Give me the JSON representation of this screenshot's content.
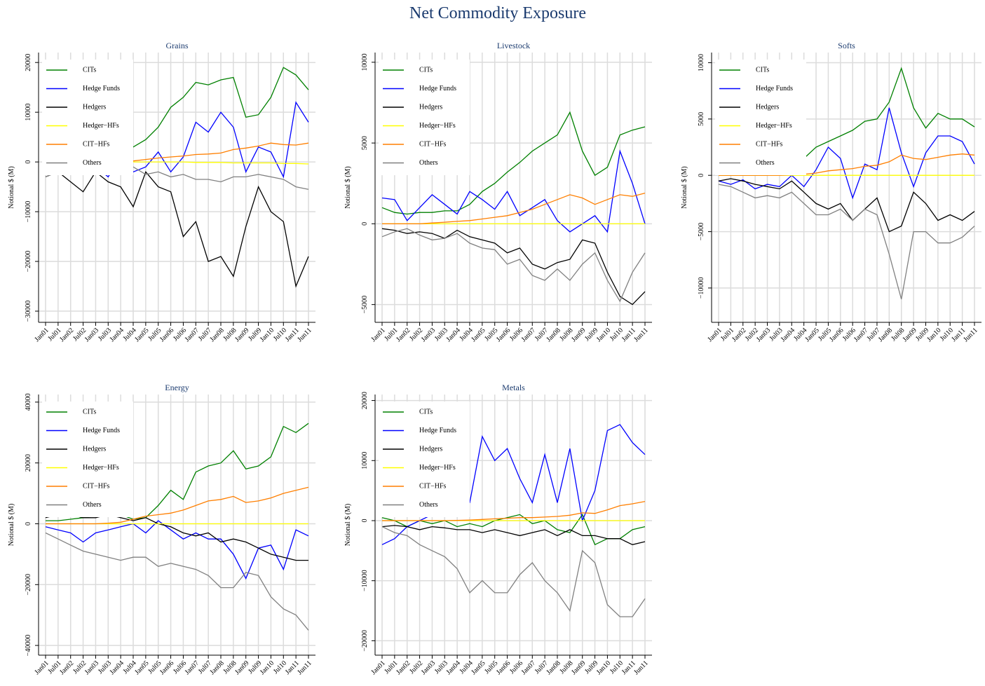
{
  "title": "Net Commodity Exposure",
  "chart_data": [
    {
      "type": "line",
      "title": "Grains",
      "ylabel": "Notional $ (M)",
      "grid": true,
      "legend": "upper left",
      "categories": [
        "Jan01",
        "Jul01",
        "Jan02",
        "Jul02",
        "Jan03",
        "Jul03",
        "Jan04",
        "Jul04",
        "Jan05",
        "Jul05",
        "Jan06",
        "Jul06",
        "Jan07",
        "Jul07",
        "Jan08",
        "Jul08",
        "Jan09",
        "Jul09",
        "Jan10",
        "Jul10",
        "Jan11",
        "Jun11"
      ],
      "ylim": [
        -32250,
        22000
      ],
      "yticks": [
        {
          "value": -30000,
          "label": "−30000"
        },
        {
          "value": -20000,
          "label": "−20000"
        },
        {
          "value": -10000,
          "label": "−10000"
        },
        0,
        10000,
        20000
      ],
      "series": [
        {
          "name": "CITs",
          "color": "#008000",
          "values": [
            0,
            0,
            500,
            800,
            1000,
            1500,
            2000,
            3000,
            4500,
            7000,
            11000,
            13000,
            16000,
            15500,
            16500,
            17000,
            9000,
            9500,
            13000,
            19000,
            17500,
            14500
          ]
        },
        {
          "name": "Hedge Funds",
          "color": "#0000ff",
          "values": [
            -1000,
            -2000,
            -1500,
            -2000,
            -1000,
            -3000,
            1000,
            -2000,
            -1000,
            2000,
            -2000,
            1000,
            8000,
            6000,
            10000,
            7000,
            -2000,
            3000,
            2000,
            -3000,
            12000,
            8000
          ]
        },
        {
          "name": "Hedgers",
          "color": "#000000",
          "values": [
            -3000,
            -2000,
            -4000,
            -6000,
            -2000,
            -4000,
            -5000,
            -9000,
            -2000,
            -5000,
            -6000,
            -15000,
            -12000,
            -20000,
            -19000,
            -23000,
            -13000,
            -5000,
            -10000,
            -12000,
            -25000,
            -19000
          ]
        },
        {
          "name": "Hedger−HFs",
          "color": "#ffff00",
          "values": [
            0,
            0,
            0,
            0,
            0,
            0,
            0,
            0,
            0,
            0,
            0,
            0,
            -100,
            -100,
            -100,
            -200,
            -200,
            -200,
            -200,
            -300,
            -300,
            -400
          ]
        },
        {
          "name": "CIT−HFs",
          "color": "#ff7f00",
          "values": [
            0,
            0,
            0,
            0,
            0,
            0,
            0,
            200,
            500,
            800,
            1000,
            1200,
            1500,
            1600,
            1800,
            2500,
            2800,
            3200,
            3800,
            3500,
            3400,
            3800
          ]
        },
        {
          "name": "Others",
          "color": "#808080",
          "values": [
            -3000,
            -2000,
            -1500,
            -2000,
            -1000,
            -2000,
            0,
            -1000,
            -2500,
            -2000,
            -3000,
            -2500,
            -3500,
            -3500,
            -4000,
            -3000,
            -3000,
            -2500,
            -3000,
            -3500,
            -5000,
            -5500
          ]
        }
      ]
    },
    {
      "type": "line",
      "title": "Livestock",
      "ylabel": "Notional $ (M)",
      "grid": true,
      "legend": "upper left",
      "categories": [
        "Jan01",
        "Jul01",
        "Jan02",
        "Jul02",
        "Jan03",
        "Jul03",
        "Jan04",
        "Jul04",
        "Jan05",
        "Jul05",
        "Jan06",
        "Jul06",
        "Jan07",
        "Jul07",
        "Jan08",
        "Jul08",
        "Jan09",
        "Jul09",
        "Jan10",
        "Jul10",
        "Jan11",
        "Jun11"
      ],
      "ylim": [
        -6100,
        10600
      ],
      "yticks": [
        {
          "value": -5000,
          "label": "−5000"
        },
        0,
        5000,
        10000
      ],
      "series": [
        {
          "name": "CITs",
          "color": "#008000",
          "values": [
            1000,
            700,
            600,
            700,
            700,
            800,
            800,
            1200,
            2000,
            2500,
            3200,
            3800,
            4500,
            5000,
            5500,
            6900,
            4500,
            3000,
            3500,
            5500,
            5800,
            6000
          ]
        },
        {
          "name": "Hedge Funds",
          "color": "#0000ff",
          "values": [
            1600,
            1500,
            200,
            1000,
            1800,
            1200,
            600,
            2000,
            1500,
            900,
            2000,
            500,
            1000,
            1500,
            200,
            -500,
            0,
            500,
            -500,
            4500,
            2500,
            0
          ]
        },
        {
          "name": "Hedgers",
          "color": "#000000",
          "values": [
            -300,
            -400,
            -600,
            -500,
            -600,
            -900,
            -400,
            -800,
            -1000,
            -1200,
            -1800,
            -1500,
            -2500,
            -2800,
            -2400,
            -2200,
            -1000,
            -1200,
            -3000,
            -4500,
            -5000,
            -4200
          ]
        },
        {
          "name": "Hedger−HFs",
          "color": "#ffff00",
          "values": [
            0,
            0,
            0,
            0,
            0,
            0,
            0,
            0,
            0,
            0,
            0,
            0,
            0,
            0,
            0,
            0,
            0,
            0,
            0,
            0,
            0,
            0
          ]
        },
        {
          "name": "CIT−HFs",
          "color": "#ff7f00",
          "values": [
            0,
            0,
            0,
            0,
            50,
            100,
            150,
            200,
            300,
            400,
            500,
            700,
            900,
            1200,
            1500,
            1800,
            1600,
            1200,
            1500,
            1800,
            1700,
            1900
          ]
        },
        {
          "name": "Others",
          "color": "#808080",
          "values": [
            -800,
            -500,
            -300,
            -700,
            -1000,
            -900,
            -600,
            -1200,
            -1500,
            -1600,
            -2500,
            -2200,
            -3200,
            -3500,
            -2800,
            -3500,
            -2500,
            -1800,
            -3500,
            -4800,
            -3000,
            -1800
          ]
        }
      ]
    },
    {
      "type": "line",
      "title": "Softs",
      "ylabel": "Notional $ (M)",
      "grid": true,
      "legend": "upper left",
      "categories": [
        "Jan01",
        "Jul01",
        "Jan02",
        "Jul02",
        "Jan03",
        "Jul03",
        "Jan04",
        "Jul04",
        "Jan05",
        "Jul05",
        "Jan06",
        "Jul06",
        "Jan07",
        "Jul07",
        "Jan08",
        "Jul08",
        "Jan09",
        "Jul09",
        "Jan10",
        "Jul10",
        "Jan11",
        "Jun11"
      ],
      "ylim": [
        -13050,
        10900
      ],
      "yticks": [
        {
          "value": -10000,
          "label": "−10000"
        },
        {
          "value": -5000,
          "label": "−5000"
        },
        0,
        5000,
        10000
      ],
      "series": [
        {
          "name": "CITs",
          "color": "#008000",
          "values": [
            0,
            0,
            0,
            0,
            0,
            200,
            600,
            1500,
            2500,
            3000,
            3500,
            4000,
            4800,
            5000,
            6500,
            9500,
            6000,
            4200,
            5500,
            5000,
            5000,
            4300
          ]
        },
        {
          "name": "Hedge Funds",
          "color": "#0000ff",
          "values": [
            -500,
            -800,
            -400,
            -1200,
            -800,
            -1000,
            0,
            -1000,
            500,
            2500,
            1500,
            -2000,
            1000,
            500,
            6000,
            2000,
            -1000,
            2000,
            3500,
            3500,
            3000,
            1000
          ]
        },
        {
          "name": "Hedgers",
          "color": "#000000",
          "values": [
            -500,
            -300,
            -500,
            -800,
            -1000,
            -1200,
            -500,
            -1500,
            -2500,
            -3000,
            -2500,
            -4000,
            -3000,
            -2000,
            -5000,
            -4500,
            -1500,
            -2500,
            -4000,
            -3500,
            -4000,
            -3200
          ]
        },
        {
          "name": "Hedger−HFs",
          "color": "#ffff00",
          "values": [
            0,
            0,
            0,
            0,
            0,
            0,
            0,
            0,
            0,
            0,
            0,
            0,
            0,
            0,
            0,
            0,
            0,
            0,
            0,
            0,
            0,
            0
          ]
        },
        {
          "name": "CIT−HFs",
          "color": "#ff7f00",
          "values": [
            0,
            0,
            0,
            0,
            0,
            0,
            50,
            100,
            200,
            400,
            500,
            600,
            800,
            900,
            1200,
            1800,
            1500,
            1400,
            1600,
            1800,
            1900,
            1800
          ]
        },
        {
          "name": "Others",
          "color": "#808080",
          "values": [
            -800,
            -1000,
            -1500,
            -2000,
            -1800,
            -2000,
            -1500,
            -2500,
            -3500,
            -3500,
            -3000,
            -4000,
            -3000,
            -3500,
            -7000,
            -11000,
            -5000,
            -5000,
            -6000,
            -6000,
            -5500,
            -4500
          ]
        }
      ]
    },
    {
      "type": "line",
      "title": "Energy",
      "ylabel": "Notional $ (M)",
      "grid": true,
      "legend": "upper left",
      "categories": [
        "Jan01",
        "Jul01",
        "Jan02",
        "Jul02",
        "Jan03",
        "Jul03",
        "Jan04",
        "Jul04",
        "Jan05",
        "Jul05",
        "Jan06",
        "Jul06",
        "Jan07",
        "Jul07",
        "Jan08",
        "Jul08",
        "Jan09",
        "Jul09",
        "Jan10",
        "Jul10",
        "Jan11",
        "Jun11"
      ],
      "ylim": [
        -43200,
        42500
      ],
      "yticks": [
        {
          "value": -40000,
          "label": "−40000"
        },
        {
          "value": -20000,
          "label": "−20000"
        },
        0,
        20000,
        40000
      ],
      "series": [
        {
          "name": "CITs",
          "color": "#008000",
          "values": [
            1000,
            1000,
            1500,
            2000,
            2500,
            2500,
            3000,
            1500,
            2000,
            6000,
            11000,
            8000,
            17000,
            19000,
            20000,
            24000,
            18000,
            19000,
            22000,
            32000,
            30000,
            33000
          ]
        },
        {
          "name": "Hedge Funds",
          "color": "#0000ff",
          "values": [
            -1000,
            -2000,
            -3000,
            -6000,
            -3000,
            -2000,
            -1000,
            0,
            -3000,
            1000,
            -2000,
            -5000,
            -3000,
            -5000,
            -5000,
            -10000,
            -18000,
            -8000,
            -7000,
            -15000,
            -2000,
            -4000
          ]
        },
        {
          "name": "Hedgers",
          "color": "#000000",
          "values": [
            2000,
            3000,
            3000,
            2000,
            2000,
            3000,
            2000,
            1000,
            2000,
            0,
            -1000,
            -3000,
            -4000,
            -3000,
            -6000,
            -5000,
            -6000,
            -8000,
            -10000,
            -11000,
            -12000,
            -12000
          ]
        },
        {
          "name": "Hedger−HFs",
          "color": "#ffff00",
          "values": [
            0,
            0,
            0,
            0,
            0,
            0,
            0,
            0,
            0,
            0,
            0,
            0,
            0,
            0,
            0,
            0,
            0,
            0,
            0,
            0,
            0,
            0
          ]
        },
        {
          "name": "CIT−HFs",
          "color": "#ff7f00",
          "values": [
            0,
            0,
            0,
            0,
            0,
            200,
            500,
            1500,
            2500,
            3000,
            3500,
            4500,
            6000,
            7500,
            8000,
            9000,
            7000,
            7500,
            8500,
            10000,
            11000,
            12000
          ]
        },
        {
          "name": "Others",
          "color": "#808080",
          "values": [
            -3000,
            -5000,
            -7000,
            -9000,
            -10000,
            -11000,
            -12000,
            -11000,
            -11000,
            -14000,
            -13000,
            -14000,
            -15000,
            -17000,
            -21000,
            -21000,
            -16000,
            -17000,
            -24000,
            -28000,
            -30000,
            -35000
          ]
        }
      ]
    },
    {
      "type": "line",
      "title": "Metals",
      "ylabel": "Notional $ (M)",
      "grid": true,
      "legend": "upper left",
      "categories": [
        "Jan01",
        "Jul01",
        "Jan02",
        "Jul02",
        "Jan03",
        "Jul03",
        "Jan04",
        "Jul04",
        "Jan05",
        "Jul05",
        "Jan06",
        "Jul06",
        "Jan07",
        "Jul07",
        "Jan08",
        "Jul08",
        "Jan09",
        "Jul09",
        "Jan10",
        "Jul10",
        "Jan11",
        "Jun11"
      ],
      "ylim": [
        -22400,
        21000
      ],
      "yticks": [
        {
          "value": -20000,
          "label": "−20000"
        },
        {
          "value": -10000,
          "label": "−10000"
        },
        0,
        10000,
        20000
      ],
      "series": [
        {
          "name": "CITs",
          "color": "#008000",
          "values": [
            500,
            0,
            -1000,
            0,
            -500,
            0,
            -1000,
            -500,
            -1000,
            0,
            500,
            1000,
            -500,
            0,
            -1500,
            -2000,
            1000,
            -4000,
            -3000,
            -3000,
            -1500,
            -1000
          ]
        },
        {
          "name": "Hedge Funds",
          "color": "#0000ff",
          "values": [
            -4000,
            -3000,
            -1000,
            0,
            1000,
            2000,
            1000,
            3000,
            14000,
            10000,
            12000,
            7000,
            3000,
            11000,
            3000,
            12000,
            0,
            5000,
            15000,
            16000,
            13000,
            11000
          ]
        },
        {
          "name": "Hedgers",
          "color": "#000000",
          "values": [
            -1000,
            -800,
            -1000,
            -1500,
            -1000,
            -1200,
            -1500,
            -1500,
            -2000,
            -1500,
            -2000,
            -2500,
            -2000,
            -1500,
            -2500,
            -1500,
            -2500,
            -2500,
            -3000,
            -3000,
            -4000,
            -3500
          ]
        },
        {
          "name": "Hedger−HFs",
          "color": "#ffff00",
          "values": [
            0,
            0,
            0,
            0,
            0,
            0,
            0,
            0,
            0,
            0,
            0,
            0,
            0,
            0,
            0,
            0,
            0,
            0,
            0,
            0,
            0,
            0
          ]
        },
        {
          "name": "CIT−HFs",
          "color": "#ff7f00",
          "values": [
            0,
            0,
            0,
            0,
            0,
            0,
            50,
            100,
            200,
            300,
            400,
            500,
            500,
            600,
            700,
            900,
            1300,
            1200,
            1800,
            2500,
            2800,
            3200
          ]
        },
        {
          "name": "Others",
          "color": "#808080",
          "values": [
            -1000,
            -2000,
            -2500,
            -4000,
            -5000,
            -6000,
            -8000,
            -12000,
            -10000,
            -12000,
            -12000,
            -9000,
            -7000,
            -10000,
            -12000,
            -15000,
            -5000,
            -7000,
            -14000,
            -16000,
            -16000,
            -13000
          ]
        }
      ]
    }
  ]
}
